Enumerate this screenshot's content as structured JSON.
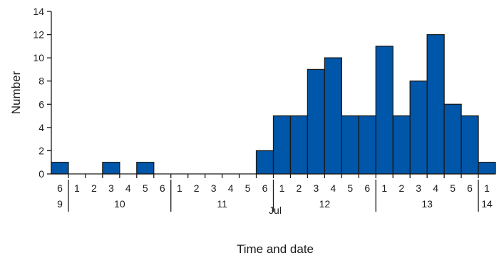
{
  "chart_data": {
    "type": "bar",
    "xlabel": "Time and date",
    "ylabel": "Number",
    "ylim": [
      0,
      14
    ],
    "yticks": [
      0,
      2,
      4,
      6,
      8,
      10,
      12,
      14
    ],
    "month_label": "Jul",
    "bar_color": "#0056a8",
    "bar_edge_color": "#1a1a1a",
    "grid": false,
    "categories": [
      "6",
      "1",
      "2",
      "3",
      "4",
      "5",
      "6",
      "1",
      "2",
      "3",
      "4",
      "5",
      "6",
      "1",
      "2",
      "3",
      "4",
      "5",
      "6",
      "1",
      "2",
      "3",
      "4",
      "5",
      "6",
      "1"
    ],
    "values": [
      1,
      0,
      0,
      1,
      0,
      1,
      0,
      0,
      0,
      0,
      0,
      0,
      2,
      5,
      5,
      9,
      10,
      5,
      5,
      11,
      5,
      8,
      12,
      6,
      5,
      1
    ],
    "date_groups": [
      {
        "label": "9",
        "count": 1
      },
      {
        "label": "10",
        "count": 6
      },
      {
        "label": "11",
        "count": 6
      },
      {
        "label": "12",
        "count": 6
      },
      {
        "label": "13",
        "count": 6
      },
      {
        "label": "14",
        "count": 1
      }
    ]
  }
}
